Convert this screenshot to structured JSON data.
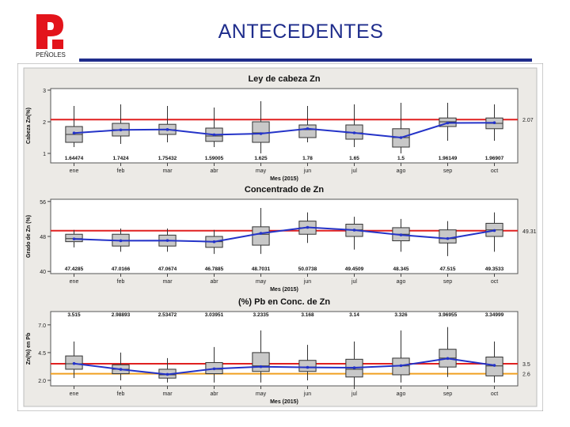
{
  "slide": {
    "title": "ANTECEDENTES",
    "logo_text": "PEÑOLES"
  },
  "colors": {
    "background": "#ffffff",
    "title": "#1f2d8c",
    "panel_bg": "#eceae6",
    "plot_bg": "#ffffff",
    "reference_red": "#e02020",
    "reference_orange": "#f0a020",
    "mean_line": "#2433c8",
    "box_fill": "#c8c8c8",
    "logo_red": "#e3141b"
  },
  "chart_data": [
    {
      "type": "boxplot",
      "title": "Ley de cabeza Zn",
      "xlabel": "Mes (2015)",
      "ylabel": "Cabeza Zn(%)",
      "ylim": [
        0.7,
        3.05
      ],
      "yticks": [
        "1",
        "2",
        "3"
      ],
      "ytick_values": [
        1,
        2,
        3
      ],
      "categories": [
        "ene",
        "feb",
        "mar",
        "abr",
        "may",
        "jun",
        "jul",
        "ago",
        "sep",
        "oct"
      ],
      "means": [
        1.64474,
        1.7424,
        1.75432,
        1.59005,
        1.625,
        1.78,
        1.65,
        1.5,
        1.96149,
        1.96907
      ],
      "mean_labels": [
        "1.64474",
        "1.7424",
        "1.75432",
        "1.59005",
        "1.625",
        "1.78",
        "1.65",
        "1.5",
        "1.96149",
        "1.96907"
      ],
      "boxes": [
        {
          "min": 1.2,
          "q1": 1.35,
          "median": 1.6,
          "q3": 1.85,
          "max": 2.5
        },
        {
          "min": 1.3,
          "q1": 1.55,
          "median": 1.75,
          "q3": 1.95,
          "max": 2.55
        },
        {
          "min": 1.35,
          "q1": 1.6,
          "median": 1.75,
          "q3": 1.92,
          "max": 2.5
        },
        {
          "min": 1.2,
          "q1": 1.38,
          "median": 1.55,
          "q3": 1.8,
          "max": 2.45
        },
        {
          "min": 1.0,
          "q1": 1.35,
          "median": 1.65,
          "q3": 2.0,
          "max": 2.65
        },
        {
          "min": 1.35,
          "q1": 1.5,
          "median": 1.75,
          "q3": 1.9,
          "max": 2.5
        },
        {
          "min": 1.2,
          "q1": 1.45,
          "median": 1.65,
          "q3": 1.9,
          "max": 2.55
        },
        {
          "min": 1.0,
          "q1": 1.2,
          "median": 1.5,
          "q3": 1.78,
          "max": 2.6
        },
        {
          "min": 1.4,
          "q1": 1.85,
          "median": 2.0,
          "q3": 2.12,
          "max": 2.6
        },
        {
          "min": 1.4,
          "q1": 1.78,
          "median": 1.95,
          "q3": 2.12,
          "max": 2.55
        }
      ],
      "reference_lines": [
        {
          "value": 2.07,
          "label": "2.07",
          "color": "#e02020"
        }
      ]
    },
    {
      "type": "boxplot",
      "title": "Concentrado de Zn",
      "xlabel": "Mes (2015)",
      "ylabel": "Grado de Zn (%)",
      "ylim": [
        39.5,
        56.5
      ],
      "yticks": [
        "40",
        "48",
        "56"
      ],
      "ytick_values": [
        40,
        48,
        56
      ],
      "categories": [
        "ene",
        "feb",
        "mar",
        "abr",
        "may",
        "jun",
        "jul",
        "ago",
        "sep",
        "oct"
      ],
      "means": [
        47.4285,
        47.0166,
        47.0674,
        46.7885,
        48.7031,
        50.0738,
        49.4509,
        48.345,
        47.515,
        49.3533
      ],
      "mean_labels": [
        "47.4285",
        "47.0166",
        "47.0674",
        "46.7885",
        "48.7031",
        "50.0738",
        "49.4509",
        "48.345",
        "47.515",
        "49.3533"
      ],
      "boxes": [
        {
          "min": 45.5,
          "q1": 46.8,
          "median": 47.5,
          "q3": 48.5,
          "max": 49.5
        },
        {
          "min": 44.5,
          "q1": 45.8,
          "median": 47.0,
          "q3": 48.5,
          "max": 49.8
        },
        {
          "min": 44.5,
          "q1": 45.8,
          "median": 47.0,
          "q3": 48.3,
          "max": 49.8
        },
        {
          "min": 44.0,
          "q1": 45.5,
          "median": 46.8,
          "q3": 48.0,
          "max": 49.5
        },
        {
          "min": 44.0,
          "q1": 46.0,
          "median": 48.5,
          "q3": 50.2,
          "max": 54.5
        },
        {
          "min": 46.5,
          "q1": 48.5,
          "median": 50.0,
          "q3": 51.5,
          "max": 53.5
        },
        {
          "min": 45.0,
          "q1": 48.0,
          "median": 49.5,
          "q3": 50.8,
          "max": 52.5
        },
        {
          "min": 44.5,
          "q1": 47.0,
          "median": 48.5,
          "q3": 50.0,
          "max": 52.0
        },
        {
          "min": 43.5,
          "q1": 46.5,
          "median": 47.5,
          "q3": 49.5,
          "max": 51.5
        },
        {
          "min": 44.5,
          "q1": 48.0,
          "median": 49.5,
          "q3": 51.0,
          "max": 53.5
        }
      ],
      "reference_lines": [
        {
          "value": 49.31,
          "label": "49.31",
          "color": "#e02020"
        }
      ]
    },
    {
      "type": "boxplot",
      "title": "(%) Pb en Conc. de Zn",
      "xlabel": "Mes (2015)",
      "ylabel": "Zn(%) en Pb",
      "ylim": [
        1.5,
        8.2
      ],
      "yticks": [
        "2.0",
        "4.5",
        "7.0"
      ],
      "ytick_values": [
        2.0,
        4.5,
        7.0
      ],
      "categories": [
        "ene",
        "feb",
        "mar",
        "abr",
        "may",
        "jun",
        "jul",
        "ago",
        "sep",
        "oct"
      ],
      "means": [
        3.515,
        2.98893,
        2.53472,
        3.03951,
        3.2335,
        3.168,
        3.14,
        3.326,
        3.96955,
        3.34999
      ],
      "mean_labels": [
        "3.515",
        "2.98893",
        "2.53472",
        "3.03951",
        "3.2335",
        "3.168",
        "3.14",
        "3.326",
        "3.96955",
        "3.34999"
      ],
      "boxes": [
        {
          "min": 2.2,
          "q1": 3.0,
          "median": 3.5,
          "q3": 4.2,
          "max": 5.5
        },
        {
          "min": 2.0,
          "q1": 2.6,
          "median": 3.0,
          "q3": 3.4,
          "max": 4.5
        },
        {
          "min": 1.8,
          "q1": 2.2,
          "median": 2.5,
          "q3": 3.0,
          "max": 4.0
        },
        {
          "min": 1.8,
          "q1": 2.6,
          "median": 3.0,
          "q3": 3.6,
          "max": 5.0
        },
        {
          "min": 1.8,
          "q1": 2.8,
          "median": 3.3,
          "q3": 4.5,
          "max": 6.5
        },
        {
          "min": 2.0,
          "q1": 2.8,
          "median": 3.2,
          "q3": 3.8,
          "max": 5.2
        },
        {
          "min": 1.5,
          "q1": 2.3,
          "median": 3.0,
          "q3": 3.9,
          "max": 5.5
        },
        {
          "min": 1.8,
          "q1": 2.5,
          "median": 3.3,
          "q3": 4.0,
          "max": 6.5
        },
        {
          "min": 2.3,
          "q1": 3.2,
          "median": 4.0,
          "q3": 4.8,
          "max": 6.8
        },
        {
          "min": 1.8,
          "q1": 2.4,
          "median": 3.3,
          "q3": 4.1,
          "max": 5.5
        }
      ],
      "reference_lines": [
        {
          "value": 3.5,
          "label": "3.5",
          "color": "#e02020"
        },
        {
          "value": 2.6,
          "label": "2.6",
          "color": "#f0a020"
        }
      ]
    }
  ]
}
